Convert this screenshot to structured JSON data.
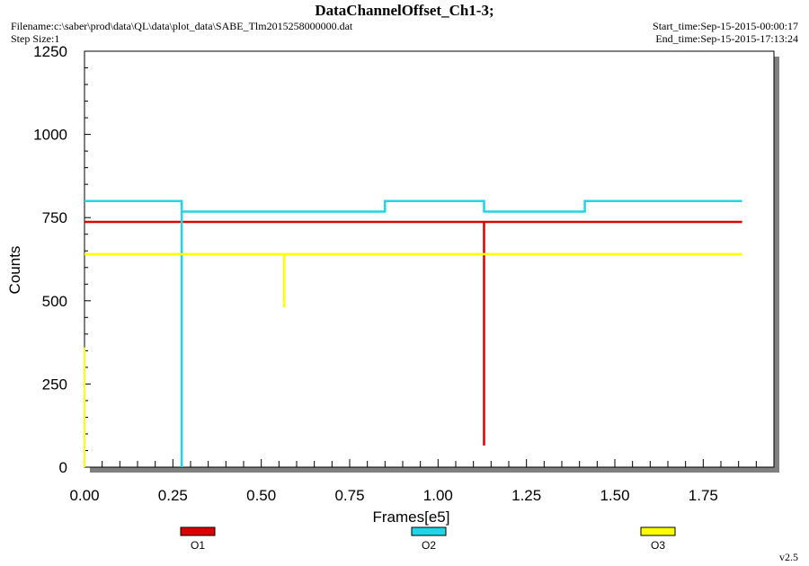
{
  "header": {
    "title": "DataChannelOffset_Ch1-3;",
    "filename": "Filename:c:\\saber\\prod\\data\\QL\\data\\plot_data\\SABE_Tlm2015258000000.dat",
    "step_size": "Step Size:1",
    "start_time": "Start_time:Sep-15-2015-00:00:17",
    "end_time": "End_time:Sep-15-2015-17:13:24"
  },
  "version": "v2.5",
  "chart_data": {
    "type": "line",
    "xlabel": "Frames[e5]",
    "ylabel": "Counts",
    "xlim": [
      0,
      1.95
    ],
    "ylim": [
      0,
      1250
    ],
    "x_ticks": [
      "0.00",
      "0.25",
      "0.50",
      "0.75",
      "1.00",
      "1.25",
      "1.50",
      "1.75"
    ],
    "y_ticks": [
      "0",
      "250",
      "500",
      "750",
      "1000",
      "1250"
    ],
    "legend_position": "bottom",
    "series": [
      {
        "name": "O1",
        "color": "#dd0000",
        "x": [
          0.0,
          1.13,
          1.13,
          1.13,
          1.86
        ],
        "y": [
          737,
          737,
          65,
          737,
          737
        ]
      },
      {
        "name": "O2",
        "color": "#22d4e8",
        "x": [
          0.0,
          0.275,
          0.275,
          0.275,
          0.275,
          0.85,
          0.85,
          1.13,
          1.13,
          1.415,
          1.415,
          1.86
        ],
        "y": [
          800,
          800,
          0,
          768,
          768,
          768,
          800,
          800,
          768,
          768,
          800,
          800
        ]
      },
      {
        "name": "O3",
        "color": "#ffff00",
        "x": [
          0.0,
          0.565,
          0.565,
          0.565,
          1.86
        ],
        "y": [
          640,
          640,
          480,
          640,
          640
        ]
      }
    ]
  }
}
